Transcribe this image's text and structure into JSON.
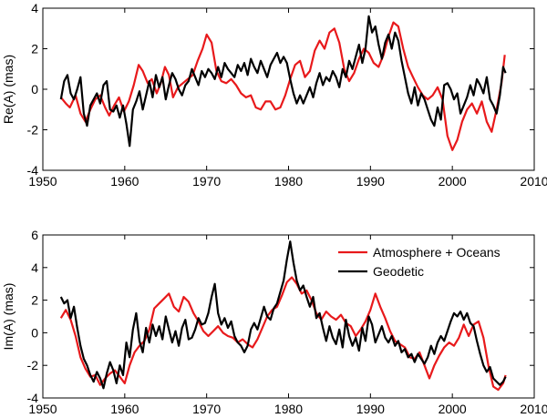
{
  "chart_data": [
    {
      "type": "line",
      "title": "",
      "xlabel": "",
      "ylabel": "Re(A) (mas)",
      "xlim": [
        1950,
        2010
      ],
      "ylim": [
        -4,
        4
      ],
      "xticks": [
        1950,
        1960,
        1970,
        1980,
        1990,
        2000,
        2010
      ],
      "yticks": [
        -4,
        -2,
        0,
        2,
        4
      ],
      "legend": null,
      "series": [
        {
          "name": "Atmosphere + Oceans",
          "color": "#e8191b",
          "x": [
            1952.2,
            1952.8,
            1953.3,
            1954.0,
            1954.6,
            1955.2,
            1955.8,
            1956.4,
            1957.0,
            1957.6,
            1958.1,
            1958.7,
            1959.3,
            1959.9,
            1960.5,
            1961.1,
            1961.7,
            1962.2,
            1962.8,
            1963.3,
            1963.9,
            1964.4,
            1964.9,
            1965.4,
            1965.9,
            1966.5,
            1967.1,
            1967.7,
            1968.3,
            1968.9,
            1969.5,
            1970.0,
            1970.6,
            1971.2,
            1971.8,
            1972.4,
            1973.0,
            1973.6,
            1974.2,
            1974.8,
            1975.4,
            1976.0,
            1976.6,
            1977.2,
            1977.8,
            1978.4,
            1979.0,
            1979.6,
            1980.2,
            1980.8,
            1981.4,
            1982.0,
            1982.6,
            1983.2,
            1983.8,
            1984.4,
            1985.0,
            1985.6,
            1986.2,
            1986.8,
            1987.4,
            1988.0,
            1988.6,
            1989.2,
            1989.8,
            1990.4,
            1991.0,
            1991.6,
            1992.2,
            1992.8,
            1993.4,
            1994.0,
            1994.6,
            1995.2,
            1995.8,
            1996.4,
            1997.0,
            1997.6,
            1998.2,
            1998.8,
            1999.4,
            2000.0,
            2000.6,
            2001.2,
            2001.8,
            2002.4,
            2003.0,
            2003.6,
            2004.2,
            2004.8,
            2005.4,
            2006.0,
            2006.4
          ],
          "values": [
            -0.4,
            -0.7,
            -0.9,
            -0.3,
            -1.2,
            -1.6,
            -1.0,
            -0.5,
            -0.3,
            -0.9,
            -1.3,
            -0.8,
            -0.4,
            -1.1,
            -0.6,
            0.2,
            1.2,
            0.9,
            0.3,
            0.5,
            -0.2,
            0.3,
            1.1,
            0.7,
            -0.4,
            0.1,
            0.3,
            0.5,
            0.7,
            1.4,
            2.0,
            2.7,
            2.3,
            0.9,
            0.4,
            0.3,
            0.5,
            0.2,
            -0.2,
            -0.4,
            -0.3,
            -0.9,
            -1.0,
            -0.6,
            -0.6,
            -1.0,
            -0.9,
            -0.3,
            0.5,
            1.2,
            1.4,
            0.6,
            0.9,
            1.9,
            2.4,
            2.0,
            2.8,
            3.0,
            2.3,
            1.0,
            0.4,
            0.8,
            1.5,
            2.0,
            1.8,
            1.3,
            1.1,
            1.7,
            2.6,
            3.3,
            3.1,
            2.0,
            1.1,
            0.6,
            0.1,
            -0.3,
            -0.5,
            -0.3,
            0.1,
            -0.5,
            -2.3,
            -3.0,
            -2.5,
            -1.6,
            -1.0,
            -0.7,
            -1.2,
            -0.6,
            -1.6,
            -2.1,
            -1.0,
            0.3,
            1.7
          ]
        },
        {
          "name": "Geodetic",
          "color": "#000000",
          "x": [
            1952.2,
            1952.6,
            1953.0,
            1953.4,
            1953.8,
            1954.2,
            1954.6,
            1955.0,
            1955.4,
            1955.8,
            1956.2,
            1956.6,
            1957.0,
            1957.4,
            1957.8,
            1958.2,
            1958.6,
            1959.0,
            1959.4,
            1959.8,
            1960.2,
            1960.6,
            1961.0,
            1961.4,
            1961.8,
            1962.2,
            1962.6,
            1963.0,
            1963.4,
            1963.8,
            1964.2,
            1964.6,
            1965.0,
            1965.4,
            1965.8,
            1966.2,
            1966.6,
            1967.0,
            1967.4,
            1967.8,
            1968.2,
            1968.6,
            1969.0,
            1969.4,
            1969.8,
            1970.2,
            1970.6,
            1971.0,
            1971.4,
            1971.8,
            1972.2,
            1972.6,
            1973.0,
            1973.4,
            1973.8,
            1974.2,
            1974.6,
            1975.0,
            1975.4,
            1975.8,
            1976.2,
            1976.6,
            1977.0,
            1977.4,
            1977.8,
            1978.2,
            1978.6,
            1979.0,
            1979.4,
            1979.8,
            1980.2,
            1980.6,
            1981.0,
            1981.4,
            1981.8,
            1982.2,
            1982.6,
            1983.0,
            1983.4,
            1983.8,
            1984.2,
            1984.6,
            1985.0,
            1985.4,
            1985.8,
            1986.2,
            1986.6,
            1987.0,
            1987.4,
            1987.8,
            1988.2,
            1988.6,
            1989.0,
            1989.4,
            1989.8,
            1990.2,
            1990.6,
            1991.0,
            1991.4,
            1991.8,
            1992.2,
            1992.6,
            1993.0,
            1993.4,
            1993.8,
            1994.2,
            1994.6,
            1995.0,
            1995.4,
            1995.8,
            1996.2,
            1996.6,
            1997.0,
            1997.4,
            1997.8,
            1998.2,
            1998.6,
            1999.0,
            1999.4,
            1999.8,
            2000.2,
            2000.6,
            2001.0,
            2001.4,
            2001.8,
            2002.2,
            2002.6,
            2003.0,
            2003.4,
            2003.8,
            2004.2,
            2004.6,
            2005.0,
            2005.4,
            2005.8,
            2006.2,
            2006.5
          ],
          "values": [
            -0.5,
            0.4,
            0.7,
            -0.2,
            -0.5,
            0.0,
            0.6,
            -1.2,
            -1.8,
            -0.8,
            -0.5,
            -0.2,
            -0.7,
            0.2,
            0.4,
            -1.0,
            -1.1,
            -0.8,
            -1.4,
            -0.8,
            -1.7,
            -2.8,
            -1.0,
            -0.6,
            -0.1,
            -1.0,
            -0.3,
            0.4,
            -0.4,
            0.7,
            0.1,
            0.6,
            -0.5,
            0.2,
            0.8,
            0.5,
            0.0,
            -0.3,
            0.2,
            0.4,
            1.0,
            0.6,
            0.2,
            0.9,
            0.6,
            1.0,
            0.8,
            0.5,
            1.1,
            0.6,
            1.3,
            1.0,
            0.8,
            0.6,
            1.2,
            0.9,
            1.3,
            0.7,
            1.5,
            1.1,
            0.8,
            1.4,
            1.0,
            0.6,
            1.2,
            1.5,
            1.8,
            1.3,
            1.6,
            1.3,
            0.5,
            -0.2,
            -0.7,
            -0.3,
            -0.7,
            -0.3,
            0.1,
            -0.4,
            0.3,
            0.8,
            0.2,
            0.6,
            0.4,
            0.9,
            0.6,
            0.1,
            1.0,
            0.6,
            1.4,
            1.0,
            1.6,
            2.2,
            1.3,
            2.0,
            3.6,
            2.8,
            3.1,
            2.2,
            1.5,
            2.3,
            2.7,
            2.0,
            2.8,
            2.4,
            1.4,
            0.6,
            -0.2,
            -0.7,
            0.1,
            -0.8,
            -0.2,
            -0.5,
            -1.0,
            -1.5,
            -1.8,
            -0.9,
            -1.5,
            0.2,
            0.3,
            0.0,
            -0.5,
            -0.2,
            -1.2,
            -0.8,
            -0.4,
            0.2,
            -0.3,
            0.5,
            0.2,
            -0.2,
            0.6,
            -0.5,
            -0.8,
            -1.2,
            -0.3,
            1.1,
            0.8
          ]
        }
      ]
    },
    {
      "type": "line",
      "title": "",
      "xlabel": "",
      "ylabel": "Im(A) (mas)",
      "xlim": [
        1950,
        2010
      ],
      "ylim": [
        -4,
        6
      ],
      "xticks": [
        1950,
        1960,
        1970,
        1980,
        1990,
        2000,
        2010
      ],
      "yticks": [
        -4,
        -2,
        0,
        2,
        4,
        6
      ],
      "legend": "top-right",
      "series": [
        {
          "name": "Atmosphere + Oceans",
          "color": "#e8191b",
          "x": [
            1952.2,
            1952.8,
            1953.4,
            1954.0,
            1954.6,
            1955.2,
            1955.8,
            1956.4,
            1957.0,
            1957.6,
            1958.2,
            1958.8,
            1959.4,
            1960.0,
            1960.6,
            1961.2,
            1961.8,
            1962.4,
            1963.0,
            1963.6,
            1964.2,
            1964.8,
            1965.4,
            1966.0,
            1966.6,
            1967.2,
            1967.8,
            1968.4,
            1969.0,
            1969.6,
            1970.2,
            1970.8,
            1971.4,
            1972.0,
            1972.6,
            1973.2,
            1973.8,
            1974.4,
            1975.0,
            1975.6,
            1976.2,
            1976.8,
            1977.4,
            1978.0,
            1978.6,
            1979.2,
            1979.8,
            1980.4,
            1981.0,
            1981.6,
            1982.2,
            1982.8,
            1983.4,
            1984.0,
            1984.6,
            1985.2,
            1985.8,
            1986.4,
            1987.0,
            1987.6,
            1988.2,
            1988.8,
            1989.4,
            1990.0,
            1990.6,
            1991.2,
            1991.8,
            1992.4,
            1993.0,
            1993.6,
            1994.2,
            1994.8,
            1995.4,
            1996.0,
            1996.6,
            1997.2,
            1997.8,
            1998.4,
            1999.0,
            1999.6,
            2000.2,
            2000.8,
            2001.4,
            2002.0,
            2002.6,
            2003.2,
            2003.8,
            2004.4,
            2005.0,
            2005.6,
            2006.2,
            2006.5
          ],
          "values": [
            0.9,
            1.4,
            0.8,
            -0.2,
            -1.5,
            -2.2,
            -2.7,
            -2.6,
            -3.2,
            -2.8,
            -2.5,
            -2.3,
            -2.7,
            -3.1,
            -2.0,
            -1.2,
            -0.8,
            -0.5,
            0.2,
            1.5,
            1.8,
            2.1,
            2.4,
            1.6,
            1.3,
            2.2,
            1.9,
            1.2,
            0.7,
            0.1,
            -0.2,
            0.1,
            0.4,
            0.0,
            -0.2,
            -0.3,
            -0.6,
            -0.4,
            -0.7,
            -0.9,
            -0.4,
            0.3,
            1.0,
            1.4,
            1.6,
            2.3,
            3.1,
            3.4,
            3.0,
            2.4,
            2.6,
            2.0,
            1.2,
            0.8,
            1.3,
            1.0,
            0.8,
            1.1,
            0.6,
            0.4,
            -0.2,
            0.2,
            0.7,
            1.4,
            2.4,
            1.6,
            0.9,
            0.1,
            -0.5,
            -0.7,
            -0.9,
            -1.5,
            -1.6,
            -1.2,
            -2.0,
            -2.8,
            -2.0,
            -1.4,
            -0.9,
            -0.6,
            -0.8,
            -0.3,
            0.5,
            -0.2,
            0.5,
            0.7,
            -0.3,
            -2.0,
            -3.3,
            -3.5,
            -3.1,
            -2.6
          ]
        },
        {
          "name": "Geodetic",
          "color": "#000000",
          "x": [
            1952.2,
            1952.6,
            1953.0,
            1953.4,
            1953.8,
            1954.2,
            1954.6,
            1955.0,
            1955.4,
            1955.8,
            1956.2,
            1956.6,
            1957.0,
            1957.4,
            1957.8,
            1958.2,
            1958.6,
            1959.0,
            1959.4,
            1959.8,
            1960.2,
            1960.6,
            1961.0,
            1961.4,
            1961.8,
            1962.2,
            1962.6,
            1963.0,
            1963.4,
            1963.8,
            1964.2,
            1964.6,
            1965.0,
            1965.4,
            1965.8,
            1966.2,
            1966.6,
            1967.0,
            1967.4,
            1967.8,
            1968.2,
            1968.6,
            1969.0,
            1969.4,
            1969.8,
            1970.2,
            1970.6,
            1971.0,
            1971.4,
            1971.8,
            1972.2,
            1972.6,
            1973.0,
            1973.4,
            1973.8,
            1974.2,
            1974.6,
            1975.0,
            1975.4,
            1975.8,
            1976.2,
            1976.6,
            1977.0,
            1977.4,
            1977.8,
            1978.2,
            1978.6,
            1979.0,
            1979.4,
            1979.8,
            1980.2,
            1980.6,
            1981.0,
            1981.4,
            1981.8,
            1982.2,
            1982.6,
            1983.0,
            1983.4,
            1983.8,
            1984.2,
            1984.6,
            1985.0,
            1985.4,
            1985.8,
            1986.2,
            1986.6,
            1987.0,
            1987.4,
            1987.8,
            1988.2,
            1988.6,
            1989.0,
            1989.4,
            1989.8,
            1990.2,
            1990.6,
            1991.0,
            1991.4,
            1991.8,
            1992.2,
            1992.6,
            1993.0,
            1993.4,
            1993.8,
            1994.2,
            1994.6,
            1995.0,
            1995.4,
            1995.8,
            1996.2,
            1996.6,
            1997.0,
            1997.4,
            1997.8,
            1998.2,
            1998.6,
            1999.0,
            1999.4,
            1999.8,
            2000.2,
            2000.6,
            2001.0,
            2001.4,
            2001.8,
            2002.2,
            2002.6,
            2003.0,
            2003.4,
            2003.8,
            2004.2,
            2004.6,
            2005.0,
            2005.4,
            2005.8,
            2006.2,
            2006.5
          ],
          "values": [
            2.2,
            1.8,
            2.0,
            0.9,
            1.6,
            0.3,
            -0.8,
            -1.6,
            -2.0,
            -2.6,
            -3.0,
            -2.4,
            -2.8,
            -3.4,
            -2.5,
            -1.8,
            -2.3,
            -3.1,
            -2.0,
            -2.6,
            -0.6,
            -1.5,
            0.2,
            1.2,
            -0.5,
            -1.2,
            0.3,
            -0.6,
            0.5,
            -0.2,
            0.4,
            -0.4,
            1.0,
            0.2,
            -0.6,
            0.1,
            -0.8,
            0.3,
            0.8,
            -0.4,
            -0.3,
            0.2,
            0.9,
            0.5,
            0.6,
            1.2,
            2.2,
            3.0,
            1.2,
            0.5,
            0.9,
            0.3,
            0.7,
            -0.2,
            -0.6,
            -0.8,
            -1.2,
            -0.8,
            0.2,
            0.6,
            0.2,
            0.9,
            1.6,
            1.0,
            0.8,
            1.5,
            1.8,
            2.5,
            3.2,
            4.5,
            5.6,
            4.3,
            3.2,
            2.6,
            2.9,
            2.2,
            1.6,
            2.2,
            0.9,
            1.2,
            0.3,
            -0.5,
            0.4,
            -0.3,
            -0.7,
            0.2,
            -0.9,
            0.8,
            -0.2,
            -0.8,
            -0.3,
            -1.1,
            0.3,
            -0.5,
            1.0,
            0.5,
            -0.6,
            -0.1,
            0.4,
            -0.3,
            -0.6,
            -0.2,
            -0.8,
            -0.5,
            -1.2,
            -1.0,
            -1.5,
            -1.3,
            -1.8,
            -1.3,
            -1.6,
            -1.9,
            -1.5,
            -0.8,
            -1.3,
            -0.6,
            -0.2,
            -0.5,
            0.1,
            0.7,
            1.2,
            1.0,
            1.3,
            0.8,
            1.2,
            0.6,
            0.4,
            -0.5,
            -1.3,
            -2.0,
            -2.4,
            -2.1,
            -2.8,
            -3.0,
            -3.2,
            -3.0,
            -2.7
          ]
        }
      ]
    }
  ]
}
